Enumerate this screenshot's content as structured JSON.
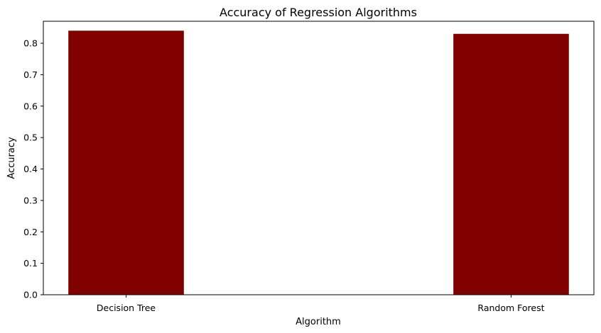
{
  "chart_data": {
    "type": "bar",
    "title": "Accuracy of Regression Algorithms",
    "xlabel": "Algorithm",
    "ylabel": "Accuracy",
    "categories": [
      "Decision Tree",
      "Random Forest"
    ],
    "values": [
      0.84,
      0.83
    ],
    "ylim": [
      0,
      0.87
    ],
    "yticks": [
      "0.0",
      "0.1",
      "0.2",
      "0.3",
      "0.4",
      "0.5",
      "0.6",
      "0.7",
      "0.8"
    ],
    "bar_color": "#800000",
    "grid": false,
    "legend": false
  }
}
